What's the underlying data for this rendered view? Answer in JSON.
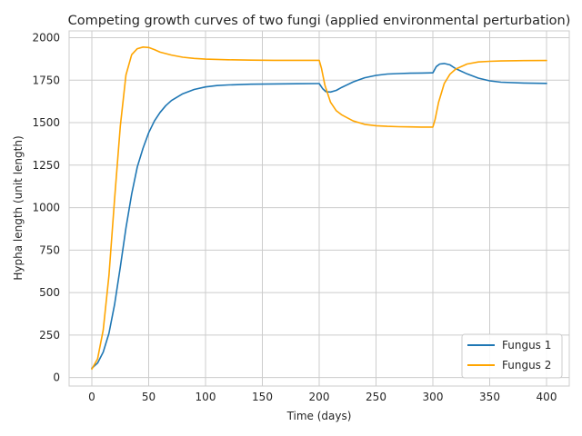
{
  "chart_data": {
    "type": "line",
    "title": "Competing growth curves of two fungi (applied environmental perturbation)",
    "xlabel": "Time (days)",
    "ylabel": "Hypha length (unit length)",
    "xlim": [
      -20,
      420
    ],
    "ylim": [
      -50,
      2040
    ],
    "xticks": [
      0,
      50,
      100,
      150,
      200,
      250,
      300,
      350,
      400
    ],
    "yticks": [
      0,
      250,
      500,
      750,
      1000,
      1250,
      1500,
      1750,
      2000
    ],
    "grid": true,
    "legend_position": "lower-right",
    "series": [
      {
        "name": "Fungus 1",
        "color": "#1f77b4",
        "x": [
          0,
          5,
          10,
          15,
          20,
          25,
          30,
          35,
          40,
          45,
          50,
          55,
          60,
          65,
          70,
          80,
          90,
          100,
          110,
          120,
          140,
          160,
          180,
          199,
          200,
          203,
          206,
          210,
          215,
          220,
          230,
          240,
          250,
          260,
          270,
          280,
          290,
          299,
          300,
          303,
          306,
          310,
          315,
          320,
          330,
          340,
          350,
          360,
          380,
          400
        ],
        "y": [
          55,
          85,
          150,
          260,
          430,
          650,
          880,
          1080,
          1240,
          1350,
          1440,
          1510,
          1560,
          1600,
          1630,
          1670,
          1695,
          1710,
          1718,
          1722,
          1726,
          1728,
          1729,
          1730,
          1730,
          1700,
          1682,
          1680,
          1690,
          1708,
          1740,
          1764,
          1778,
          1786,
          1789,
          1791,
          1792,
          1793,
          1793,
          1830,
          1845,
          1848,
          1840,
          1818,
          1787,
          1762,
          1746,
          1738,
          1733,
          1731
        ]
      },
      {
        "name": "Fungus 2",
        "color": "#ffa500",
        "x": [
          0,
          5,
          10,
          15,
          20,
          25,
          30,
          35,
          40,
          45,
          50,
          55,
          60,
          70,
          80,
          90,
          100,
          120,
          140,
          160,
          180,
          199,
          200,
          202,
          205,
          210,
          215,
          220,
          230,
          240,
          250,
          260,
          270,
          280,
          290,
          299,
          300,
          302,
          305,
          310,
          315,
          320,
          330,
          340,
          350,
          360,
          380,
          400
        ],
        "y": [
          50,
          110,
          280,
          600,
          1050,
          1480,
          1780,
          1900,
          1935,
          1945,
          1942,
          1930,
          1915,
          1898,
          1885,
          1878,
          1874,
          1870,
          1868,
          1867,
          1867,
          1867,
          1867,
          1820,
          1720,
          1620,
          1570,
          1545,
          1510,
          1490,
          1482,
          1478,
          1476,
          1475,
          1474,
          1474,
          1474,
          1520,
          1620,
          1730,
          1785,
          1815,
          1845,
          1857,
          1861,
          1863,
          1865,
          1866
        ]
      }
    ]
  }
}
